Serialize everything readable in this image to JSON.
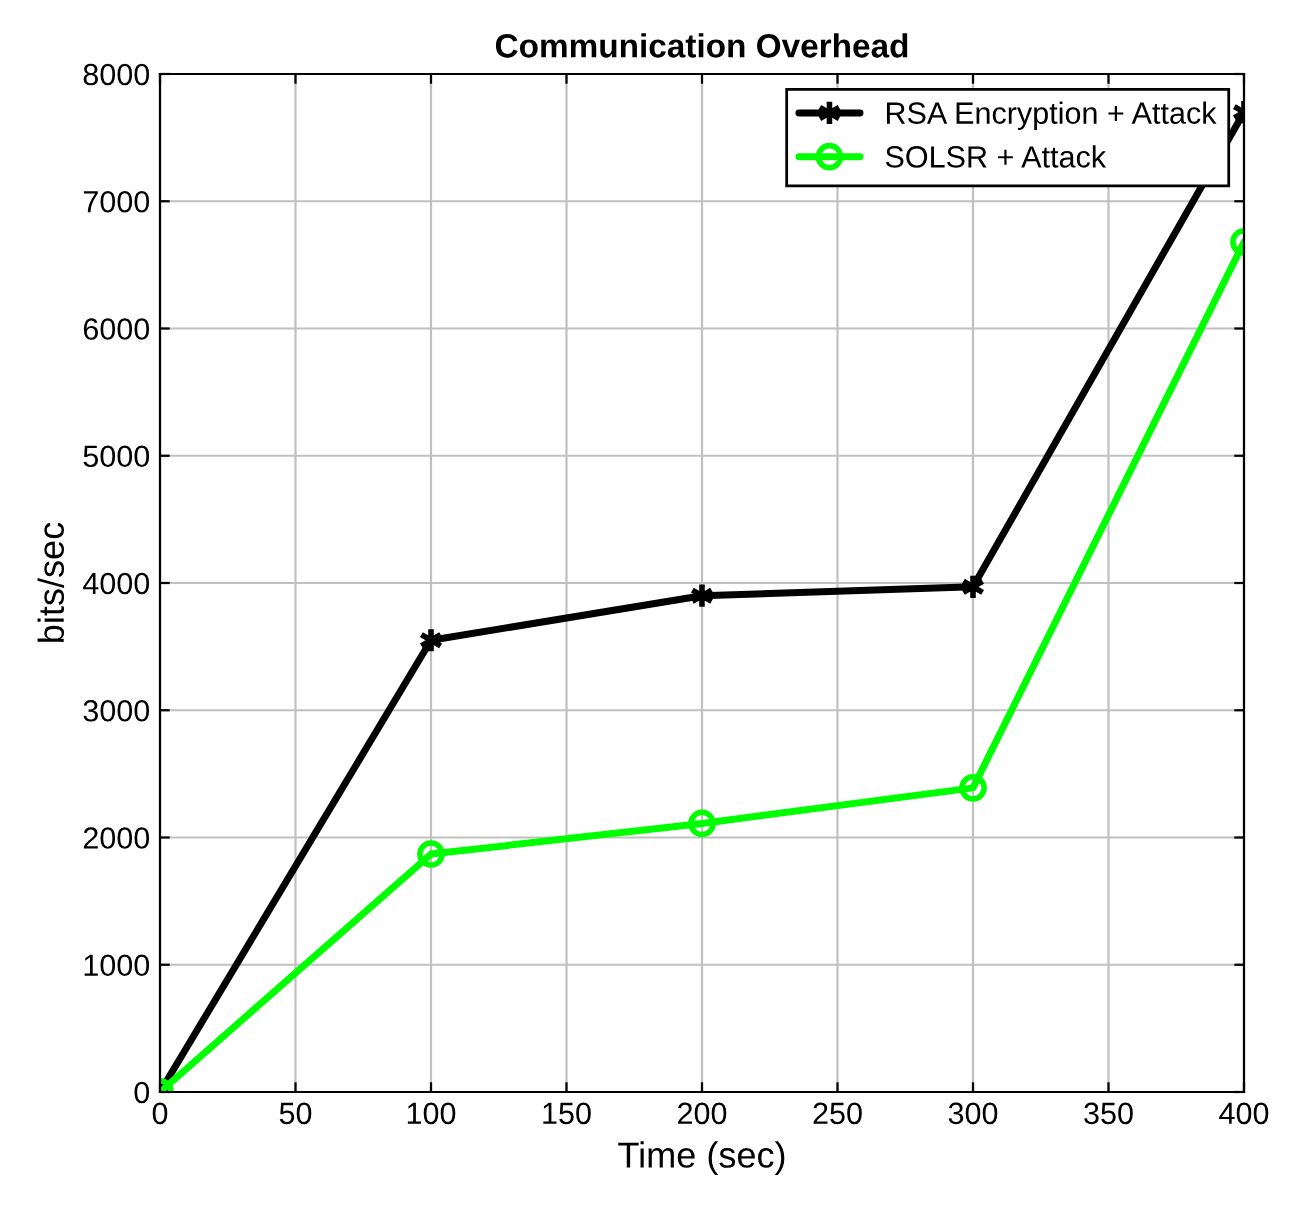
{
  "chart_data": {
    "type": "line",
    "title": "Communication Overhead",
    "xlabel": "Time (sec)",
    "ylabel": "bits/sec",
    "x": [
      0,
      100,
      200,
      300,
      400
    ],
    "series": [
      {
        "name": "RSA Encryption + Attack",
        "color": "#000000",
        "marker": "cross",
        "values": [
          0,
          3550,
          3900,
          3970,
          7700
        ]
      },
      {
        "name": "SOLSR + Attack",
        "color": "#00ff00",
        "marker": "circle",
        "values": [
          0,
          1870,
          2110,
          2390,
          6680
        ]
      }
    ],
    "xlim": [
      0,
      400
    ],
    "xticks": [
      0,
      50,
      100,
      150,
      200,
      250,
      300,
      350,
      400
    ],
    "ylim": [
      0,
      8000
    ],
    "yticks": [
      0,
      1000,
      2000,
      3000,
      4000,
      5000,
      6000,
      7000,
      8000
    ],
    "grid": true,
    "legend": "top right",
    "line_style": "solid"
  }
}
